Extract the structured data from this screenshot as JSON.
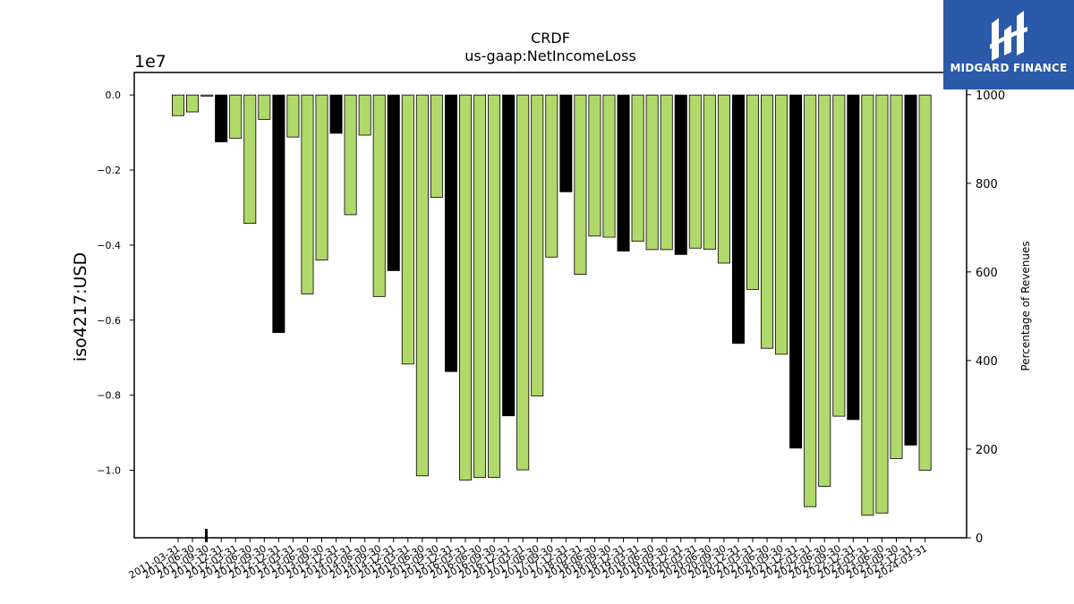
{
  "brand": {
    "name": "MIDGARD FINANCE",
    "background": "#2a5aa8"
  },
  "chart_data": {
    "type": "bar",
    "title": "CRDF",
    "subtitle": "us-gaap:NetIncomeLoss",
    "ylabel": "iso4217:USD",
    "y_offset_text": "1e7",
    "y2label": "Percentage of Revenues",
    "ylim": [
      -11800000,
      600000
    ],
    "y_ticks": [
      0.0,
      -0.2,
      -0.4,
      -0.6,
      -0.8,
      -1.0
    ],
    "y_tick_labels": [
      "0.0",
      "−0.2",
      "−0.4",
      "−0.6",
      "−0.8",
      "−1.0"
    ],
    "y2lim": [
      0,
      1050
    ],
    "y2_ticks": [
      0,
      200,
      400,
      600,
      800,
      1000
    ],
    "grid": false,
    "colors": {
      "quarter": "#b0d86a",
      "fiscal_year": "#000000",
      "edge": "#000000"
    },
    "categories": [
      "2011-03-31",
      "2011-06-30",
      "2011-09-30",
      "2011-12-31",
      "2012-03-31",
      "2012-06-30",
      "2012-09-30",
      "2012-12-31",
      "2013-03-31",
      "2013-06-30",
      "2013-09-30",
      "2013-12-31",
      "2014-03-31",
      "2014-06-30",
      "2014-09-30",
      "2014-12-31",
      "2015-03-31",
      "2015-06-30",
      "2015-09-30",
      "2015-12-31",
      "2016-03-31",
      "2016-06-30",
      "2016-09-30",
      "2016-12-31",
      "2017-03-31",
      "2017-06-30",
      "2017-09-30",
      "2017-12-31",
      "2018-03-31",
      "2018-06-30",
      "2018-09-30",
      "2018-12-31",
      "2019-03-31",
      "2019-06-30",
      "2019-09-30",
      "2019-12-31",
      "2020-03-31",
      "2020-06-30",
      "2020-09-30",
      "2020-12-31",
      "2021-03-31",
      "2021-06-30",
      "2021-09-30",
      "2021-12-31",
      "2022-03-31",
      "2022-06-30",
      "2022-09-30",
      "2022-12-31",
      "2023-03-31",
      "2023-06-30",
      "2023-09-30",
      "2023-12-31",
      "2024-03-31"
    ],
    "series": [
      {
        "values": [
          -550000,
          -450000,
          -30000,
          -1250000,
          -1150000,
          -3420000,
          -650000,
          -6330000,
          -1120000,
          -5300000,
          -4400000,
          -1020000,
          -3190000,
          -1070000,
          -5370000,
          -4680000,
          -7170000,
          -10150000,
          -2730000,
          -7370000,
          -10260000,
          -10190000,
          -10190000,
          -8550000,
          -9990000,
          -8020000,
          -4320000,
          -2580000,
          -4780000,
          -3760000,
          -3790000,
          -4160000,
          -3900000,
          -4120000,
          -4120000,
          -4250000,
          -4080000,
          -4110000,
          -4480000,
          -6620000,
          -5180000,
          -6750000,
          -6910000,
          -9410000,
          -10970000,
          -10430000,
          -8560000,
          -8650000,
          -11200000,
          -11140000,
          -9690000,
          -9330000,
          -10000000
        ],
        "fiscal_year_end": [
          false,
          false,
          false,
          true,
          false,
          false,
          false,
          true,
          false,
          false,
          false,
          true,
          false,
          false,
          false,
          true,
          false,
          false,
          false,
          true,
          false,
          false,
          false,
          true,
          false,
          false,
          false,
          true,
          false,
          false,
          false,
          true,
          false,
          false,
          false,
          true,
          false,
          false,
          false,
          true,
          false,
          false,
          false,
          true,
          false,
          false,
          false,
          true,
          false,
          false,
          false,
          true,
          false
        ]
      }
    ]
  }
}
